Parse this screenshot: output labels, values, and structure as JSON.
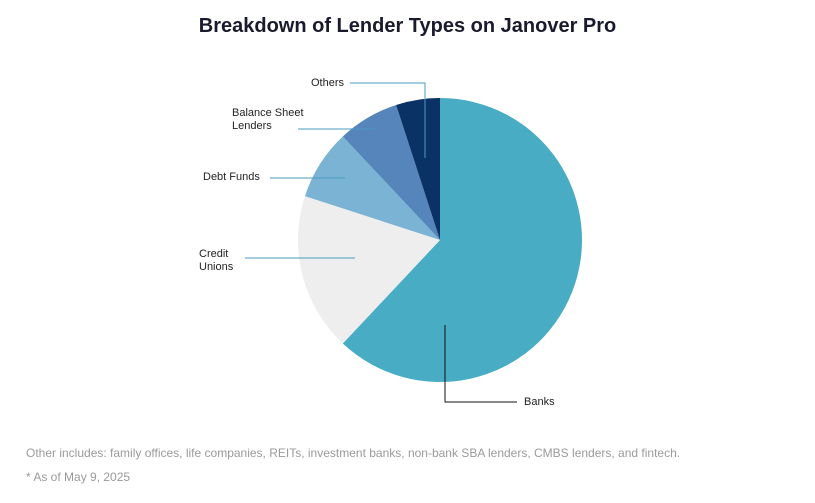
{
  "chart_data": {
    "type": "pie",
    "title": "Breakdown of Lender Types on Janover Pro",
    "categories": [
      "Banks",
      "Credit Unions",
      "Debt Funds",
      "Balance Sheet Lenders",
      "Others"
    ],
    "values": [
      62,
      18,
      8,
      7,
      5
    ],
    "colors": [
      "#48acc4",
      "#eeeeee",
      "#7ab3d3",
      "#5585bb",
      "#0a3264"
    ],
    "notes": [
      "Other includes: family offices, life companies, REITs, investment banks, non-bank SBA lenders, CMBS lenders, and fintech.",
      "* As of May 9, 2025"
    ]
  }
}
